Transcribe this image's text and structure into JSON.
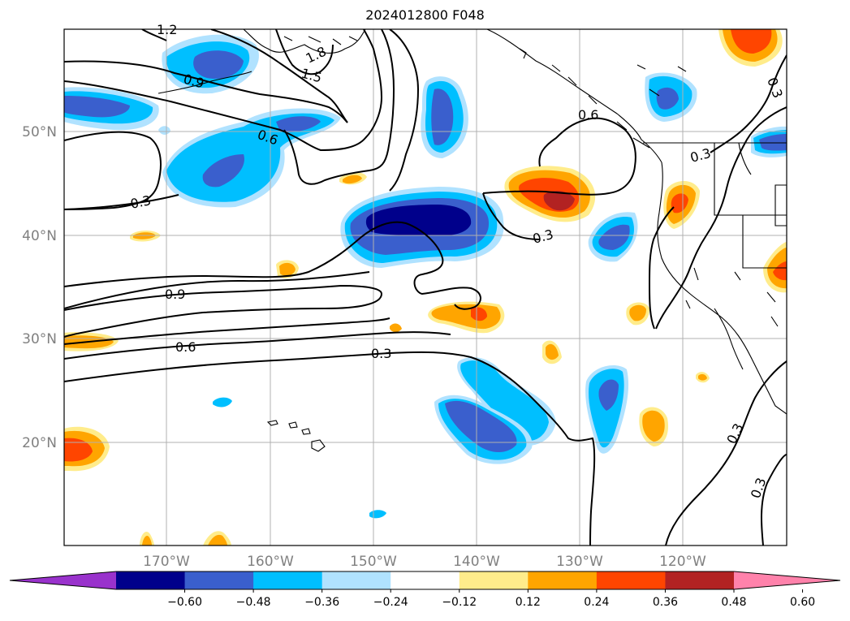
{
  "title": "2024012800 F048",
  "lon_labels": [
    "170°W",
    "160°W",
    "150°W",
    "140°W",
    "130°W",
    "120°W"
  ],
  "lat_labels": [
    "50°N",
    "40°N",
    "30°N",
    "20°N"
  ],
  "colorbar": {
    "ticks": [
      "−0.60",
      "−0.48",
      "−0.36",
      "−0.24",
      "−0.12",
      "0.12",
      "0.24",
      "0.36",
      "0.48",
      "0.60"
    ],
    "colors": [
      "#9932cc",
      "#00008b",
      "#3a5fcd",
      "#00bfff",
      "#b0e2ff",
      "#ffffff",
      "#ffec8b",
      "#ffa500",
      "#ff4500",
      "#b22222",
      "#ff82ab"
    ]
  },
  "contour_labels": [
    {
      "text": "1.2",
      "name": "contour-label-1-2-top"
    },
    {
      "text": "1.8",
      "name": "contour-label-1-8"
    },
    {
      "text": "1.5",
      "name": "contour-label-1-5"
    },
    {
      "text": "0.9",
      "name": "contour-label-0-9-north"
    },
    {
      "text": "0.6",
      "name": "contour-label-0-6-north"
    },
    {
      "text": "0.3",
      "name": "contour-label-0-3-west"
    },
    {
      "text": "0.6",
      "name": "contour-label-0-6-bc"
    },
    {
      "text": "0.3",
      "name": "contour-label-0-3-nw-coast"
    },
    {
      "text": "0.3",
      "name": "contour-label-0-3-topright"
    },
    {
      "text": "0.3",
      "name": "contour-label-0-3-mid"
    },
    {
      "text": "0.9",
      "name": "contour-label-0-9-south"
    },
    {
      "text": "0.6",
      "name": "contour-label-0-6-south"
    },
    {
      "text": "0.3",
      "name": "contour-label-0-3-south"
    },
    {
      "text": "0.3",
      "name": "contour-label-0-3-se-1"
    },
    {
      "text": "0.3",
      "name": "contour-label-0-3-se-2"
    }
  ]
}
